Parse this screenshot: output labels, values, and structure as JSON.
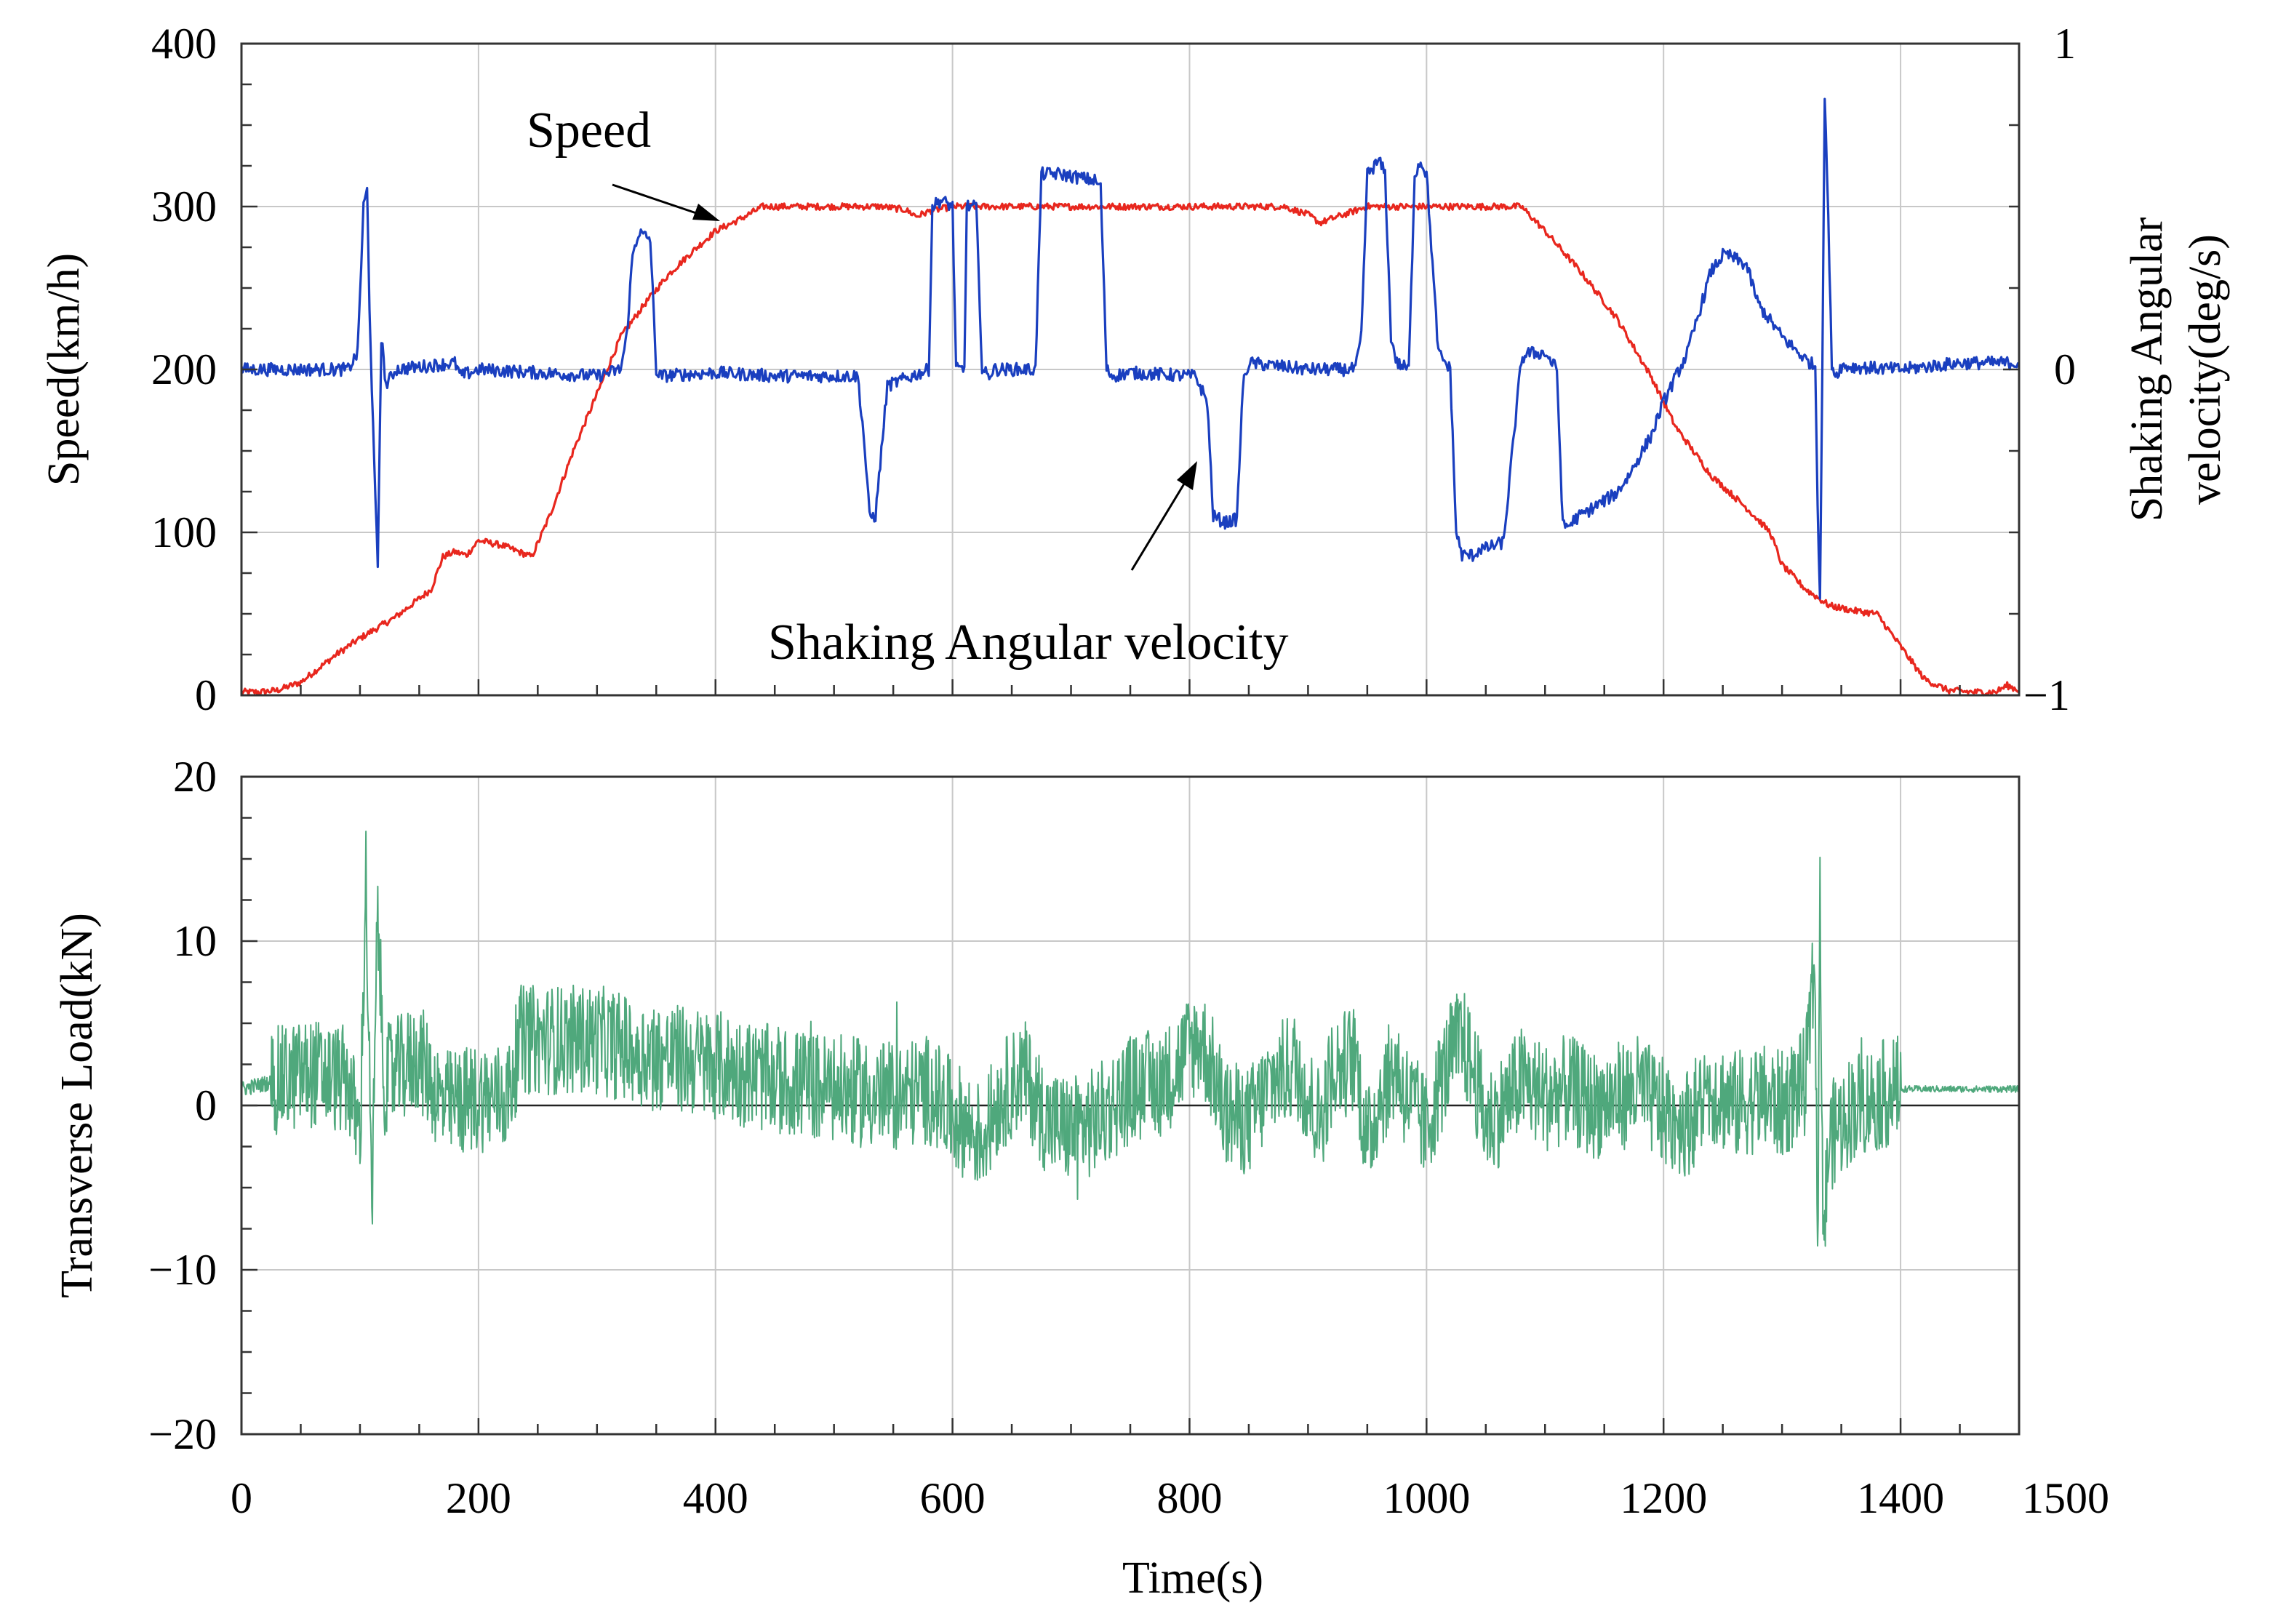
{
  "chart_data": [
    {
      "type": "line",
      "panel": "top",
      "x_domain": [
        0,
        1500
      ],
      "ylabel": "Speed(km/h)",
      "ylim": [
        0,
        400
      ],
      "yticks": [
        0,
        100,
        200,
        300,
        400
      ],
      "y2label_line1": "Shaking Angular",
      "y2label_line2": "velocity(deg/s)",
      "y2lim": [
        -1,
        1
      ],
      "y2ticks": [
        "−1",
        "0",
        "1"
      ],
      "grid": true,
      "annotations": {
        "speed": "Speed",
        "shaking": "Shaking Angular velocity"
      },
      "series": [
        {
          "name": "Speed",
          "axis": "left",
          "color": "#e8271e",
          "x": [
            0,
            15,
            30,
            50,
            80,
            100,
            130,
            160,
            170,
            180,
            190,
            200,
            220,
            245,
            260,
            280,
            300,
            320,
            340,
            360,
            380,
            400,
            420,
            440,
            460,
            500,
            540,
            560,
            570,
            580,
            600,
            650,
            700,
            750,
            800,
            850,
            880,
            900,
            910,
            930,
            950,
            1000,
            1050,
            1080,
            1100,
            1130,
            1160,
            1190,
            1210,
            1240,
            1270,
            1290,
            1300,
            1320,
            1340,
            1360,
            1380,
            1400,
            1420,
            1440,
            1460,
            1480,
            1490,
            1500
          ],
          "values": [
            2,
            2,
            3,
            8,
            25,
            35,
            48,
            65,
            85,
            88,
            86,
            95,
            92,
            85,
            110,
            150,
            185,
            220,
            240,
            258,
            272,
            285,
            292,
            300,
            300,
            300,
            300,
            298,
            294,
            297,
            300,
            300,
            300,
            300,
            300,
            300,
            300,
            295,
            290,
            295,
            300,
            300,
            300,
            300,
            285,
            260,
            232,
            195,
            165,
            135,
            115,
            100,
            80,
            65,
            55,
            52,
            50,
            30,
            10,
            3,
            2,
            2,
            6,
            3
          ]
        },
        {
          "name": "Shaking Angular velocity",
          "axis": "right",
          "color": "#1a3fbf",
          "x": [
            0,
            90,
            98,
            103,
            106,
            108,
            112,
            115,
            118,
            122,
            130,
            180,
            185,
            200,
            300,
            320,
            325,
            330,
            335,
            345,
            350,
            352,
            400,
            450,
            500,
            520,
            525,
            530,
            535,
            545,
            580,
            583,
            590,
            600,
            603,
            610,
            612,
            620,
            625,
            630,
            635,
            640,
            642,
            660,
            670,
            675,
            680,
            690,
            720,
            725,
            730,
            735,
            750,
            800,
            805,
            815,
            820,
            830,
            840,
            845,
            850,
            900,
            940,
            945,
            950,
            960,
            965,
            970,
            975,
            985,
            990,
            995,
            1000,
            1010,
            1020,
            1025,
            1030,
            1040,
            1045,
            1050,
            1065,
            1080,
            1085,
            1090,
            1100,
            1110,
            1115,
            1120,
            1125,
            1160,
            1170,
            1190,
            1200,
            1220,
            1240,
            1250,
            1255,
            1270,
            1280,
            1300,
            1320,
            1328,
            1330,
            1332,
            1334,
            1336,
            1338,
            1342,
            1345,
            1350,
            1400,
            1450,
            1500
          ],
          "values": [
            0.0,
            0.0,
            0.05,
            0.5,
            0.55,
            0.2,
            -0.3,
            -0.6,
            0.1,
            -0.05,
            0.0,
            0.02,
            -0.02,
            0.0,
            -0.02,
            0.0,
            0.1,
            0.35,
            0.42,
            0.4,
            0.0,
            -0.02,
            -0.01,
            -0.02,
            -0.02,
            -0.02,
            -0.2,
            -0.45,
            -0.45,
            -0.05,
            0.0,
            0.5,
            0.52,
            0.5,
            0.0,
            0.0,
            0.5,
            0.5,
            0.0,
            -0.02,
            0.0,
            0.0,
            0.0,
            0.0,
            0.0,
            0.6,
            0.6,
            0.6,
            0.58,
            0.56,
            0.0,
            -0.02,
            -0.01,
            -0.02,
            -0.02,
            -0.1,
            -0.45,
            -0.47,
            -0.46,
            -0.05,
            0.02,
            0.0,
            0.0,
            0.1,
            0.6,
            0.64,
            0.6,
            0.1,
            0.02,
            0.0,
            0.6,
            0.64,
            0.6,
            0.05,
            0.0,
            -0.5,
            -0.57,
            -0.57,
            -0.55,
            -0.55,
            -0.53,
            0.03,
            0.05,
            0.05,
            0.05,
            0.0,
            -0.48,
            -0.48,
            -0.46,
            -0.38,
            -0.33,
            -0.2,
            -0.1,
            0.05,
            0.3,
            0.35,
            0.35,
            0.32,
            0.2,
            0.1,
            0.03,
            0.01,
            -0.4,
            -0.7,
            0.0,
            0.85,
            0.6,
            0.02,
            -0.02,
            0.01,
            0.0,
            0.02,
            0.02
          ]
        }
      ]
    },
    {
      "type": "line",
      "panel": "bottom",
      "title": "",
      "xlabel": "Time(s)",
      "ylabel": "Transverse Load(kN)",
      "xlim": [
        0,
        1500
      ],
      "xticks": [
        0,
        200,
        400,
        600,
        800,
        1000,
        1200,
        1400,
        1500
      ],
      "ylim": [
        -20,
        20
      ],
      "yticks": [
        "20",
        "10",
        "0",
        "−10",
        "−20"
      ],
      "grid": true,
      "series": [
        {
          "name": "Transverse Load",
          "color": "#4fa87c",
          "x": [
            0,
            30,
            60,
            90,
            100,
            105,
            110,
            115,
            120,
            130,
            150,
            170,
            200,
            225,
            235,
            260,
            300,
            350,
            400,
            450,
            500,
            550,
            580,
            600,
            625,
            640,
            660,
            680,
            700,
            720,
            750,
            780,
            800,
            810,
            820,
            830,
            850,
            870,
            890,
            900,
            910,
            920,
            940,
            950,
            960,
            975,
            980,
            1000,
            1010,
            1020,
            1030,
            1040,
            1050,
            1060,
            1080,
            1100,
            1120,
            1140,
            1160,
            1180,
            1200,
            1220,
            1240,
            1260,
            1280,
            1300,
            1320,
            1328,
            1330,
            1332,
            1335,
            1340,
            1360,
            1380,
            1395,
            1400,
            1450,
            1500
          ],
          "values": [
            1.0,
            1.5,
            2.0,
            1.5,
            -2.0,
            14.0,
            -7.0,
            12.0,
            1.5,
            2.0,
            3.0,
            0.0,
            0.5,
            0.5,
            4.0,
            4.0,
            4.0,
            3.0,
            2.5,
            1.5,
            1.0,
            0.5,
            1.0,
            -0.5,
            -2.0,
            0.5,
            2.0,
            -1.0,
            -1.5,
            -1.0,
            1.0,
            1.5,
            3.5,
            4.0,
            2.0,
            -0.5,
            -1.0,
            1.5,
            2.5,
            0.5,
            -1.0,
            2.0,
            3.0,
            -2.5,
            0.5,
            2.5,
            1.0,
            -1.5,
            1.0,
            3.0,
            4.0,
            2.0,
            -1.0,
            -0.5,
            1.5,
            0.5,
            1.0,
            0.0,
            0.5,
            1.0,
            -0.5,
            -1.0,
            1.0,
            0.0,
            0.5,
            0.0,
            1.5,
            9.0,
            -10.0,
            12.0,
            -8.0,
            -2.0,
            0.0,
            0.5,
            1.0,
            1.0,
            1.0,
            1.0
          ]
        }
      ]
    }
  ]
}
